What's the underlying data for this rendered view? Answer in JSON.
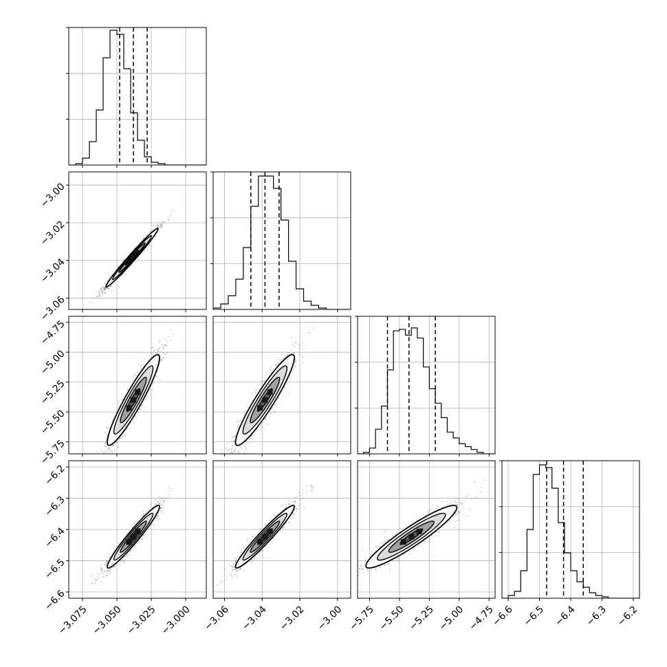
{
  "chart_data": {
    "type": "corner",
    "title": "",
    "dimensions": 4,
    "params": [
      {
        "range": [
          -3.085,
          -2.985
        ],
        "ticks": [
          -3.075,
          -3.05,
          -3.025,
          -3.0
        ],
        "tick_labels": [
          "−3.075",
          "−3.050",
          "−3.025",
          "−3.000"
        ],
        "quantiles": [
          -3.048,
          -3.038,
          -3.028
        ],
        "hist": {
          "edges_start": -3.085,
          "bin_width": 0.005,
          "counts": [
            0,
            1,
            5,
            17,
            40,
            78,
            98,
            95,
            70,
            38,
            18,
            6,
            2,
            1,
            0,
            0,
            0,
            0,
            0,
            0
          ],
          "max": 100
        }
      },
      {
        "range": [
          -3.066,
          -2.993
        ],
        "ticks": [
          -3.06,
          -3.04,
          -3.02,
          -3.0
        ],
        "tick_labels": [
          "−3.06",
          "−3.04",
          "−3.02",
          "−3.00"
        ],
        "quantiles": [
          -3.046,
          -3.0385,
          -3.031
        ],
        "hist": {
          "edges_start": -3.066,
          "bin_width": 0.004,
          "counts": [
            1,
            4,
            10,
            22,
            45,
            75,
            97,
            97,
            88,
            65,
            35,
            15,
            6,
            3,
            1,
            0,
            0,
            0
          ],
          "max": 100
        }
      },
      {
        "range": [
          -5.85,
          -4.7
        ],
        "ticks": [
          -5.75,
          -5.5,
          -5.25,
          -5.0,
          -4.75
        ],
        "tick_labels": [
          "−5.75",
          "−5.50",
          "−5.25",
          "−5.00",
          "−4.75"
        ],
        "quantiles": [
          -5.6,
          -5.42,
          -5.2
        ],
        "hist": {
          "edges_start": -5.85,
          "bin_width": 0.05,
          "counts": [
            0,
            1,
            4,
            17,
            33,
            58,
            85,
            86,
            82,
            87,
            80,
            60,
            45,
            35,
            25,
            15,
            11,
            7,
            5,
            3,
            1,
            0,
            0
          ],
          "max": 95
        }
      },
      {
        "range": [
          -6.62,
          -6.18
        ],
        "ticks": [
          -6.6,
          -6.5,
          -6.4,
          -6.3,
          -6.2
        ],
        "tick_labels": [
          "−6.6",
          "−6.5",
          "−6.4",
          "−6.3",
          "−6.2"
        ],
        "quantiles": [
          -6.477,
          -6.423,
          -6.36
        ],
        "hist": {
          "edges_start": -6.62,
          "bin_width": 0.02,
          "counts": [
            0,
            2,
            5,
            20,
            50,
            90,
            97,
            95,
            80,
            55,
            33,
            20,
            12,
            8,
            4,
            2,
            1,
            0,
            0,
            0,
            0,
            0
          ],
          "max": 100
        }
      }
    ],
    "pairs": [
      {
        "x": 0,
        "y": 1,
        "corr": 0.985,
        "center": [
          -3.039,
          -3.0385
        ],
        "sd": [
          0.0095,
          0.0078
        ]
      },
      {
        "x": 0,
        "y": 2,
        "corr": 0.93,
        "center": [
          -3.038,
          -5.4
        ],
        "sd": [
          0.0095,
          0.19
        ]
      },
      {
        "x": 1,
        "y": 2,
        "corr": 0.93,
        "center": [
          -3.0385,
          -5.4
        ],
        "sd": [
          0.0078,
          0.19
        ]
      },
      {
        "x": 0,
        "y": 3,
        "corr": 0.96,
        "center": [
          -3.038,
          -6.423
        ],
        "sd": [
          0.0095,
          0.05
        ]
      },
      {
        "x": 1,
        "y": 3,
        "corr": 0.96,
        "center": [
          -3.0385,
          -6.423
        ],
        "sd": [
          0.0078,
          0.05
        ]
      },
      {
        "x": 2,
        "y": 3,
        "corr": 0.93,
        "center": [
          -5.4,
          -6.423
        ],
        "sd": [
          0.19,
          0.05
        ]
      }
    ],
    "contour_levels_sigma": [
      0.5,
      1.0,
      1.5,
      2.0
    ],
    "grid": true,
    "colors": {
      "line": "#000000",
      "grid": "#b0b0b0",
      "scatter": "#000000",
      "density": "#000000"
    }
  }
}
